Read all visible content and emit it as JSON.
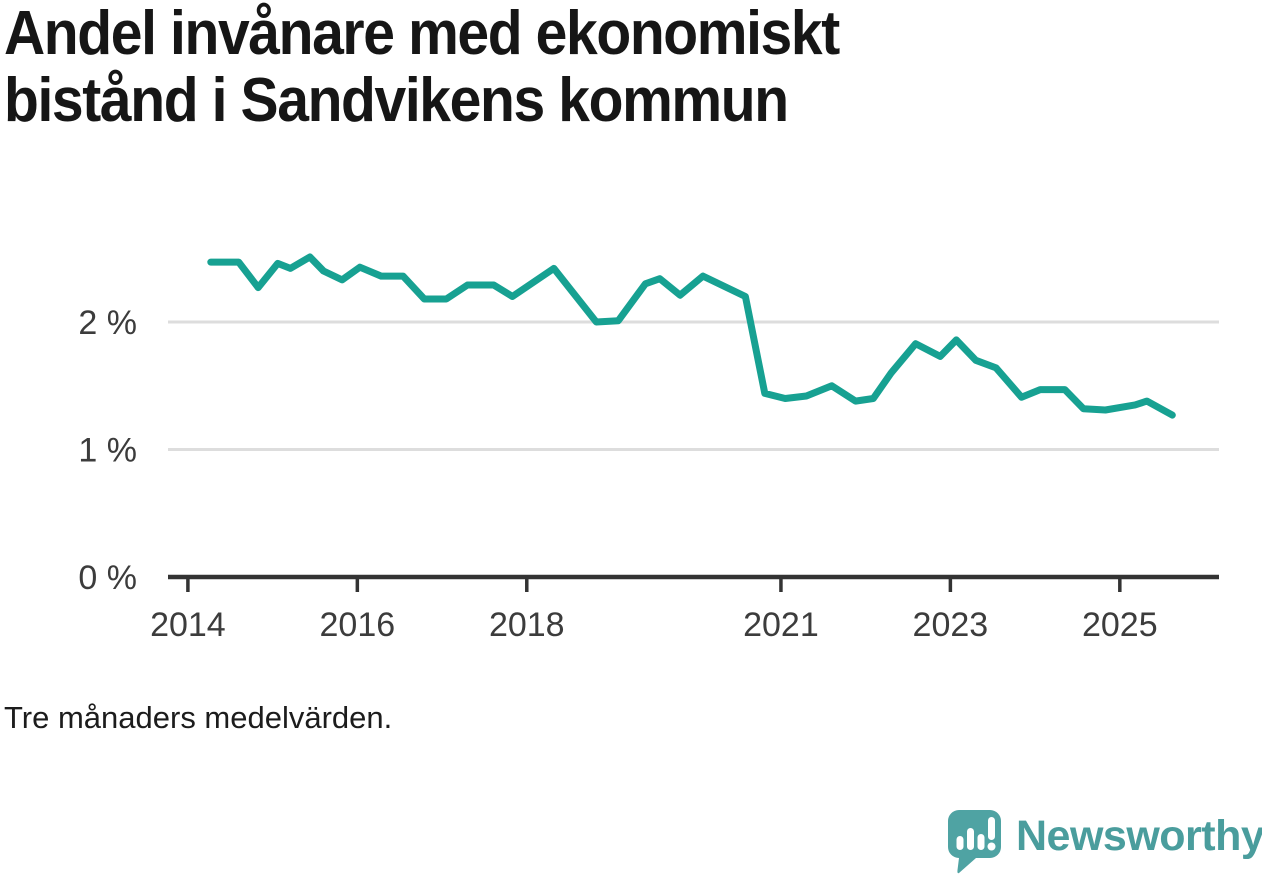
{
  "header": {
    "title_full": "Andel invånare med ekonomiskt bistånd i Sandvikens kommun",
    "title_lines": [
      "Andel invånare med ekonomiskt",
      "bistånd i Sandvikens kommun"
    ]
  },
  "footnote": {
    "text": "Tre månaders medelvärden."
  },
  "branding": {
    "logo_text": "Newsworthy",
    "logo_icon": "newsworthy-speech-bubble-barchart-icon",
    "logo_color": "#4FA3A3",
    "logo_bar_color": "#ffffff",
    "logo_text_color": "#4A9D9D"
  },
  "chart_data": {
    "type": "line",
    "title": "Andel invånare med ekonomiskt bistånd i Sandvikens kommun",
    "note": "Tre månaders medelvärden.",
    "xlabel": "",
    "ylabel": "",
    "unit": "%",
    "grid": "horizontal-only",
    "legend": "none",
    "xlim": [
      2013.76,
      2026.17
    ],
    "ylim": [
      0,
      2.75
    ],
    "xticks": [
      {
        "value": 2014,
        "label": "2014"
      },
      {
        "value": 2016,
        "label": "2016"
      },
      {
        "value": 2018,
        "label": "2018"
      },
      {
        "value": 2021,
        "label": "2021"
      },
      {
        "value": 2023,
        "label": "2023"
      },
      {
        "value": 2025,
        "label": "2025"
      }
    ],
    "yticks": [
      {
        "value": 0,
        "label": "0 %"
      },
      {
        "value": 1,
        "label": "1 %"
      },
      {
        "value": 2,
        "label": "2 %"
      }
    ],
    "series_name": "Andel invånare med ekonomiskt bistånd, Sandvikens kommun (%)",
    "points": [
      [
        2014.27,
        2.47
      ],
      [
        2014.6,
        2.47
      ],
      [
        2014.83,
        2.27
      ],
      [
        2015.06,
        2.46
      ],
      [
        2015.21,
        2.42
      ],
      [
        2015.44,
        2.51
      ],
      [
        2015.6,
        2.4
      ],
      [
        2015.82,
        2.33
      ],
      [
        2016.03,
        2.43
      ],
      [
        2016.28,
        2.36
      ],
      [
        2016.54,
        2.36
      ],
      [
        2016.79,
        2.18
      ],
      [
        2017.05,
        2.18
      ],
      [
        2017.3,
        2.29
      ],
      [
        2017.61,
        2.29
      ],
      [
        2017.83,
        2.2
      ],
      [
        2018.32,
        2.42
      ],
      [
        2018.82,
        2.0
      ],
      [
        2019.08,
        2.01
      ],
      [
        2019.4,
        2.3
      ],
      [
        2019.57,
        2.34
      ],
      [
        2019.81,
        2.21
      ],
      [
        2020.08,
        2.36
      ],
      [
        2020.58,
        2.2
      ],
      [
        2020.81,
        1.44
      ],
      [
        2021.05,
        1.4
      ],
      [
        2021.3,
        1.42
      ],
      [
        2021.6,
        1.5
      ],
      [
        2021.88,
        1.38
      ],
      [
        2022.09,
        1.4
      ],
      [
        2022.3,
        1.6
      ],
      [
        2022.59,
        1.83
      ],
      [
        2022.88,
        1.73
      ],
      [
        2023.07,
        1.86
      ],
      [
        2023.3,
        1.7
      ],
      [
        2023.54,
        1.64
      ],
      [
        2023.84,
        1.41
      ],
      [
        2024.06,
        1.47
      ],
      [
        2024.35,
        1.47
      ],
      [
        2024.57,
        1.32
      ],
      [
        2024.83,
        1.31
      ],
      [
        2025.18,
        1.35
      ],
      [
        2025.32,
        1.38
      ],
      [
        2025.62,
        1.27
      ]
    ],
    "line_color": "#17A192",
    "gridline_color": "#DDDDDD",
    "axis_color": "#333333",
    "tick_label_color": "#3C3C3C"
  }
}
